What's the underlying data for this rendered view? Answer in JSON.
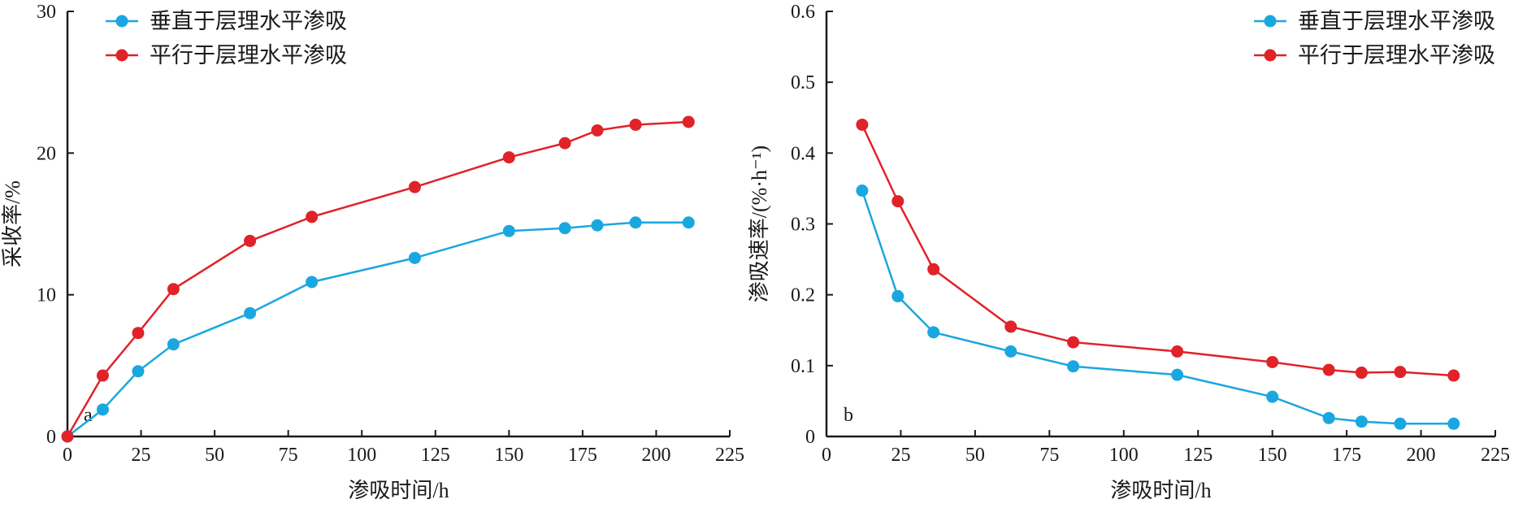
{
  "colors": {
    "vertical": "#1aa7e0",
    "parallel": "#e02229",
    "axis": "#1a1a1a"
  },
  "chart_data": [
    {
      "panel": "a",
      "type": "line",
      "xlabel": "渗吸时间/h",
      "ylabel": "采收率/%",
      "xlim": [
        0,
        225
      ],
      "ylim": [
        0,
        30
      ],
      "xticks": [
        0,
        25,
        50,
        75,
        100,
        125,
        150,
        175,
        200,
        225
      ],
      "yticks": [
        0,
        10,
        20,
        30
      ],
      "grid": false,
      "legend_position": "top-left",
      "series": [
        {
          "name": "垂直于层理水平渗吸",
          "color_key": "vertical",
          "x": [
            0,
            12,
            24,
            36,
            62,
            83,
            118,
            150,
            169,
            180,
            193,
            211
          ],
          "y": [
            0,
            1.9,
            4.6,
            6.5,
            8.7,
            10.9,
            12.6,
            14.5,
            14.7,
            14.9,
            15.1,
            15.1
          ]
        },
        {
          "name": "平行于层理水平渗吸",
          "color_key": "parallel",
          "x": [
            0,
            12,
            24,
            36,
            62,
            83,
            118,
            150,
            169,
            180,
            193,
            211
          ],
          "y": [
            0,
            4.3,
            7.3,
            10.4,
            13.8,
            15.5,
            17.6,
            19.7,
            20.7,
            21.6,
            22.0,
            22.2
          ]
        }
      ]
    },
    {
      "panel": "b",
      "type": "line",
      "xlabel": "渗吸时间/h",
      "ylabel": "渗吸速率/(%·h⁻¹)",
      "xlim": [
        0,
        225
      ],
      "ylim": [
        0,
        0.6
      ],
      "xticks": [
        0,
        25,
        50,
        75,
        100,
        125,
        150,
        175,
        200,
        225
      ],
      "yticks": [
        0,
        0.1,
        0.2,
        0.3,
        0.4,
        0.5,
        0.6
      ],
      "grid": false,
      "legend_position": "top-right",
      "series": [
        {
          "name": "垂直于层理水平渗吸",
          "color_key": "vertical",
          "x": [
            12,
            24,
            36,
            62,
            83,
            118,
            150,
            169,
            180,
            193,
            211
          ],
          "y": [
            0.347,
            0.198,
            0.147,
            0.12,
            0.099,
            0.087,
            0.056,
            0.026,
            0.021,
            0.018,
            0.018
          ]
        },
        {
          "name": "平行于层理水平渗吸",
          "color_key": "parallel",
          "x": [
            12,
            24,
            36,
            62,
            83,
            118,
            150,
            169,
            180,
            193,
            211
          ],
          "y": [
            0.44,
            0.332,
            0.236,
            0.155,
            0.133,
            0.12,
            0.105,
            0.094,
            0.09,
            0.091,
            0.086
          ]
        }
      ]
    }
  ]
}
